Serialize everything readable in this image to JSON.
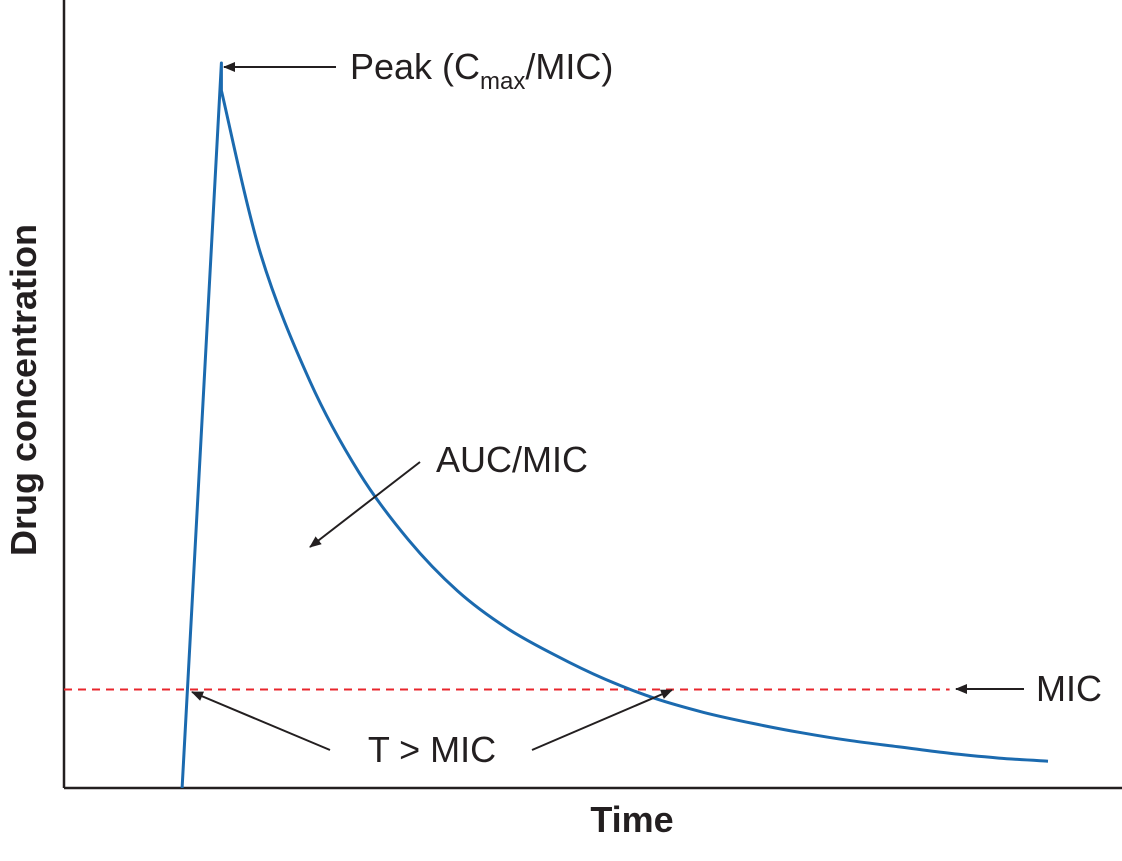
{
  "chart_data": {
    "type": "line",
    "title": "",
    "xlabel": "Time",
    "ylabel": "Drug concentration",
    "x_ticks": [],
    "y_ticks": [],
    "grid": false,
    "legend": "none",
    "xlim": [
      0,
      10
    ],
    "ylim": [
      0,
      10
    ],
    "series": [
      {
        "color": "#1b6aaf",
        "points": [
          [
            1.2,
            0.0
          ],
          [
            1.6,
            9.2
          ],
          [
            1.6,
            8.85
          ],
          [
            2.0,
            6.77
          ],
          [
            2.5,
            5.16
          ],
          [
            3.0,
            4.0
          ],
          [
            3.5,
            3.15
          ],
          [
            4.0,
            2.5
          ],
          [
            4.5,
            2.03
          ],
          [
            5.0,
            1.68
          ],
          [
            5.5,
            1.38
          ],
          [
            6.0,
            1.14
          ],
          [
            6.5,
            0.96
          ],
          [
            7.0,
            0.82
          ],
          [
            7.5,
            0.7
          ],
          [
            8.0,
            0.6
          ],
          [
            8.5,
            0.52
          ],
          [
            9.0,
            0.44
          ],
          [
            9.5,
            0.38
          ],
          [
            10.0,
            0.34
          ]
        ]
      }
    ],
    "reference_lines": [
      {
        "label": "MIC",
        "y": 1.25,
        "x_start": 0,
        "x_end": 9.0,
        "color": "#e8262c",
        "style": "dashed"
      }
    ],
    "annotations": {
      "peak": {
        "prefix": "Peak (C",
        "sub": "max",
        "suffix": "/MIC)"
      },
      "auc": "AUC/MIC",
      "tmic": "T > MIC",
      "mic": "MIC"
    }
  }
}
